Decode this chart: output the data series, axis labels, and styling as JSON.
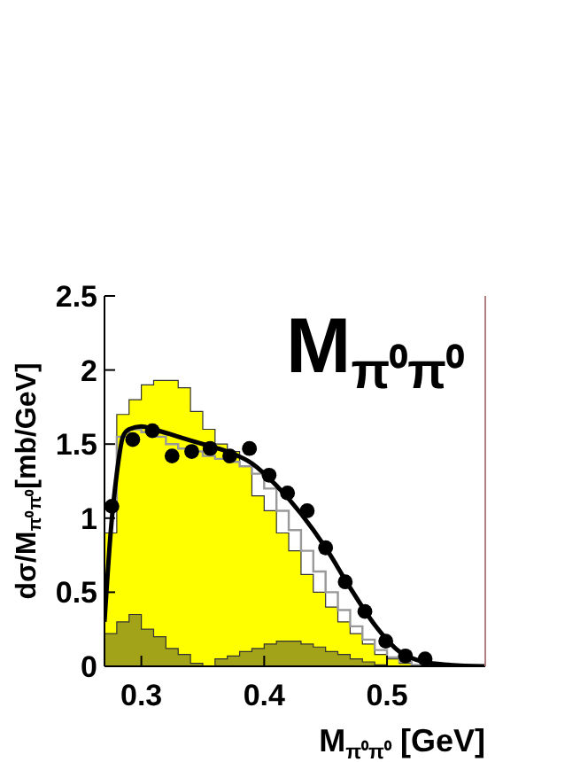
{
  "chart_data": {
    "type": "histogram",
    "title": "M$_{π⁰π⁰}$",
    "xlabel": "M$_{π⁰π⁰}$ [GeV]",
    "ylabel": "dσ/M$_{π⁰π⁰}$[mb/GeV]",
    "xlim": [
      0.27,
      0.58
    ],
    "ylim": [
      0,
      2.5
    ],
    "xticks": [
      0.3,
      0.4,
      0.5
    ],
    "yticks": [
      0,
      0.5,
      1,
      1.5,
      2,
      2.5
    ],
    "grid": false,
    "bins": [
      0.27,
      0.28,
      0.29,
      0.3,
      0.31,
      0.32,
      0.33,
      0.34,
      0.35,
      0.36,
      0.37,
      0.38,
      0.39,
      0.4,
      0.41,
      0.42,
      0.43,
      0.44,
      0.45,
      0.46,
      0.47,
      0.48,
      0.49,
      0.5,
      0.51,
      0.52,
      0.53,
      0.54,
      0.55,
      0.56,
      0.57,
      0.58
    ],
    "series": [
      {
        "color": "#ffff00",
        "values": [
          0.9,
          1.7,
          1.8,
          1.9,
          1.93,
          1.93,
          1.88,
          1.72,
          1.6,
          1.5,
          1.45,
          1.35,
          1.15,
          1.05,
          0.9,
          0.78,
          0.62,
          0.5,
          0.4,
          0.3,
          0.22,
          0.15,
          0.08,
          0.05,
          0.02,
          0,
          0,
          0,
          0,
          0,
          0
        ]
      },
      {
        "type": "step",
        "color": "#999999",
        "x": [
          0.27,
          0.28,
          0.29,
          0.3,
          0.31,
          0.32,
          0.33,
          0.34,
          0.35,
          0.36,
          0.37,
          0.38,
          0.39,
          0.4,
          0.41,
          0.42,
          0.43,
          0.44,
          0.45,
          0.46,
          0.47,
          0.48,
          0.49,
          0.5,
          0.51,
          0.52,
          0.53
        ],
        "values": [
          1.1,
          1.55,
          1.6,
          1.58,
          1.55,
          1.5,
          1.47,
          1.45,
          1.42,
          1.4,
          1.38,
          1.35,
          1.3,
          1.2,
          1.05,
          0.92,
          0.78,
          0.64,
          0.5,
          0.38,
          0.27,
          0.18,
          0.11,
          0.06,
          0.03,
          0.01,
          0
        ]
      },
      {
        "color": "#a3a31a",
        "values": [
          0.22,
          0.3,
          0.35,
          0.25,
          0.2,
          0.12,
          0.08,
          0.02,
          0,
          0.05,
          0.07,
          0.1,
          0.12,
          0.15,
          0.17,
          0.17,
          0.15,
          0.13,
          0.1,
          0.08,
          0.05,
          0.03,
          0.01,
          0,
          0,
          0,
          0,
          0,
          0,
          0,
          0
        ]
      },
      {
        "type": "line",
        "color": "#000000",
        "x": [
          0.27,
          0.275,
          0.28,
          0.285,
          0.29,
          0.3,
          0.31,
          0.33,
          0.35,
          0.37,
          0.39,
          0.41,
          0.43,
          0.45,
          0.47,
          0.49,
          0.51,
          0.53,
          0.55,
          0.58
        ],
        "values": [
          0.3,
          0.9,
          1.3,
          1.55,
          1.6,
          1.62,
          1.6,
          1.55,
          1.5,
          1.45,
          1.37,
          1.22,
          1.03,
          0.8,
          0.53,
          0.28,
          0.1,
          0.03,
          0.01,
          0
        ]
      },
      {
        "type": "scatter",
        "marker": "circle",
        "color": "#000000",
        "x": [
          0.276,
          0.293,
          0.309,
          0.325,
          0.341,
          0.356,
          0.372,
          0.388,
          0.404,
          0.419,
          0.435,
          0.45,
          0.466,
          0.482,
          0.499,
          0.515,
          0.531
        ],
        "values": [
          1.08,
          1.53,
          1.59,
          1.42,
          1.45,
          1.47,
          1.42,
          1.47,
          1.29,
          1.17,
          1.05,
          0.8,
          0.57,
          0.37,
          0.17,
          0.07,
          0.05
        ]
      }
    ]
  }
}
